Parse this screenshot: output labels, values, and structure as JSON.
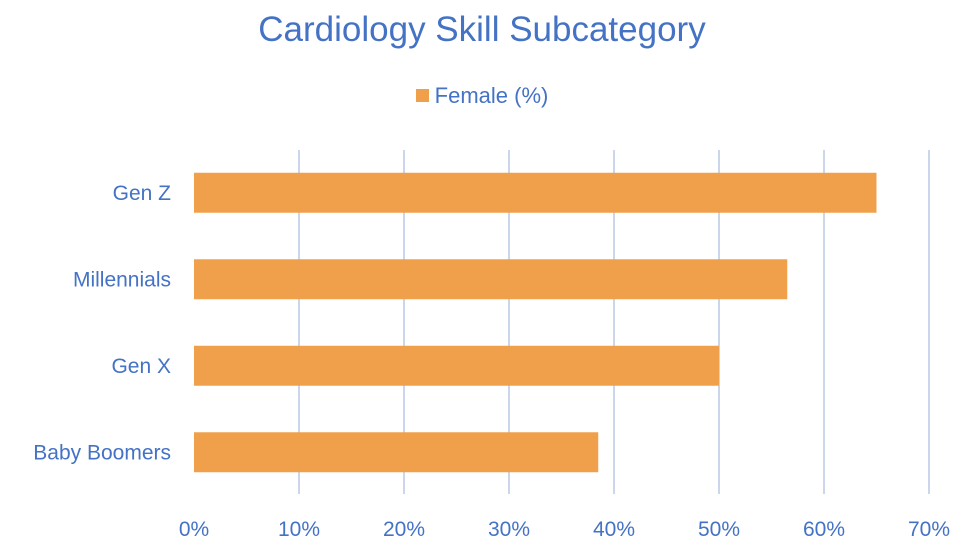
{
  "chart_data": {
    "type": "bar",
    "orientation": "horizontal",
    "title": "Cardiology Skill Subcategory",
    "categories": [
      "Gen Z",
      "Millennials",
      "Gen X",
      "Baby Boomers"
    ],
    "series": [
      {
        "name": "Female (%)",
        "values": [
          65,
          56.5,
          50,
          38.5
        ],
        "color": "#F0A04B"
      }
    ],
    "xlim": [
      0,
      70
    ],
    "xticks": [
      "0%",
      "10%",
      "20%",
      "30%",
      "40%",
      "50%",
      "60%",
      "70%"
    ],
    "xlabel": "",
    "ylabel": "",
    "grid": "vertical",
    "legend_position": "top",
    "colors": {
      "text": "#4472C4",
      "grid": "#C9D6EC"
    }
  }
}
